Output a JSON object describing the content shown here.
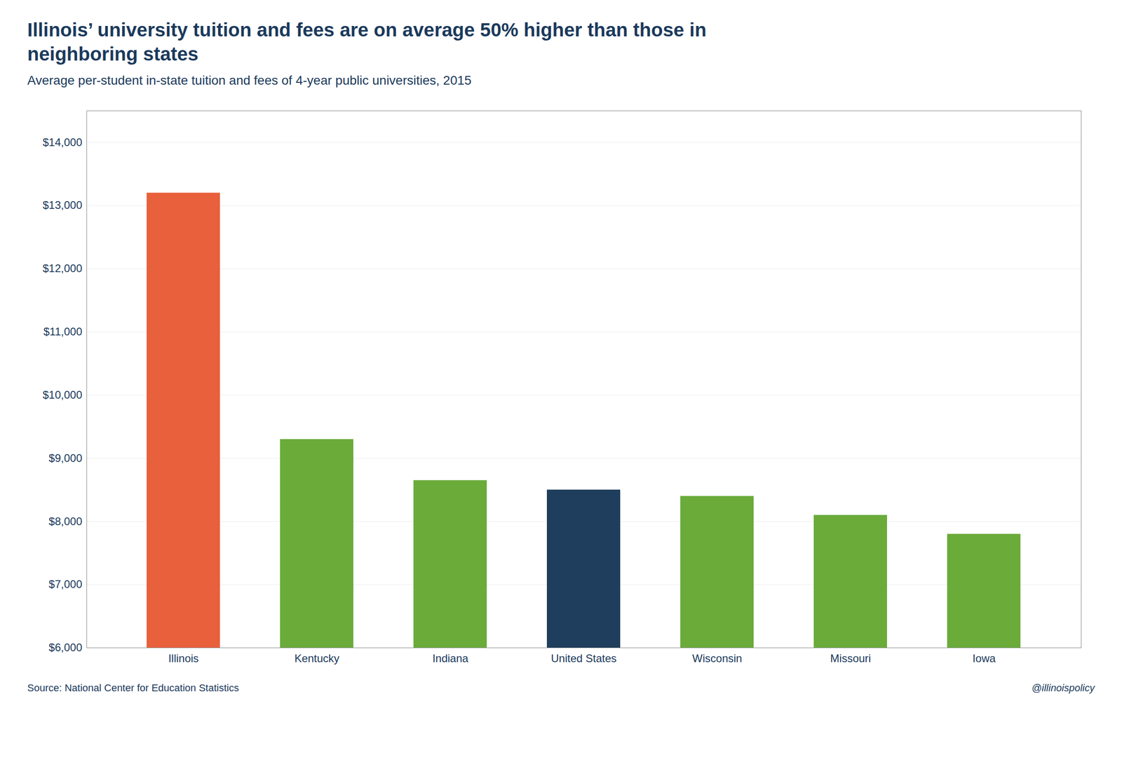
{
  "chart_data": {
    "type": "bar",
    "title": "Illinois’ university tuition and fees are on average 50% higher than those in\nneighboring states",
    "subtitle": "Average per-student in-state tuition and fees of 4-year public universities, 2015",
    "source": "Source: National Center for Education Statistics",
    "watermark": "@illinoispolicy",
    "categories": [
      "Illinois",
      "Kentucky",
      "Indiana",
      "United States",
      "Wisconsin",
      "Missouri",
      "Iowa"
    ],
    "values": [
      13200,
      9300,
      8650,
      8500,
      8400,
      8100,
      7800
    ],
    "colors": [
      "#E8603C",
      "#6AAB3A",
      "#6AAB3A",
      "#1F3D5C",
      "#6AAB3A",
      "#6AAB3A",
      "#6AAB3A"
    ],
    "ylim": [
      6000,
      14500
    ],
    "yticks": [
      {
        "value": 6000,
        "label": "$6,000"
      },
      {
        "value": 7000,
        "label": "$7,000"
      },
      {
        "value": 8000,
        "label": "$8,000"
      },
      {
        "value": 9000,
        "label": "$9,000"
      },
      {
        "value": 10000,
        "label": "$10,000"
      },
      {
        "value": 11000,
        "label": "$11,000"
      },
      {
        "value": 12000,
        "label": "$12,000"
      },
      {
        "value": 13000,
        "label": "$13,000"
      },
      {
        "value": 14000,
        "label": "$14,000"
      }
    ],
    "grid": true
  }
}
